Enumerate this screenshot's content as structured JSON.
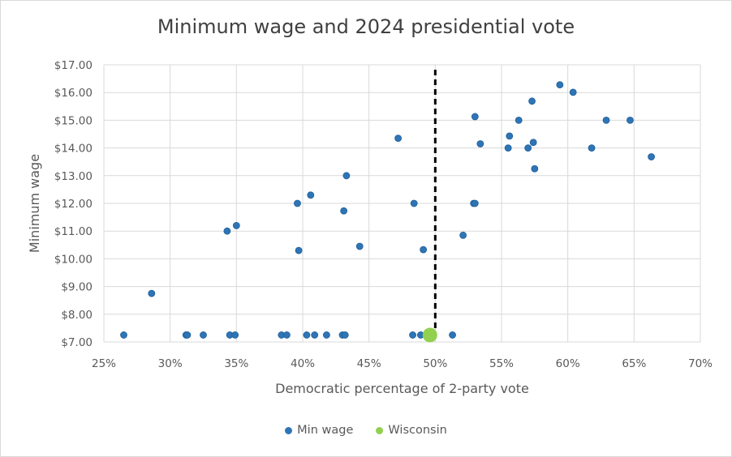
{
  "chart_data": {
    "type": "scatter",
    "title": "Minimum wage and 2024 presidential vote",
    "xlabel": "Democratic percentage of 2-party vote",
    "ylabel": "Minimum wage",
    "xlim": [
      0.25,
      0.7
    ],
    "ylim": [
      7.0,
      17.0
    ],
    "x_ticks": [
      "25%",
      "30%",
      "35%",
      "40%",
      "45%",
      "50%",
      "55%",
      "60%",
      "65%",
      "70%"
    ],
    "y_ticks": [
      "$7.00",
      "$8.00",
      "$9.00",
      "$10.00",
      "$11.00",
      "$12.00",
      "$13.00",
      "$14.00",
      "$15.00",
      "$16.00",
      "$17.00"
    ],
    "grid": true,
    "legend_position": "bottom",
    "reference_line": {
      "x": 0.5,
      "style": "dashed",
      "color": "#000000"
    },
    "series": [
      {
        "name": "Min wage",
        "color": "#2e75b6",
        "points": [
          [
            0.265,
            7.25
          ],
          [
            0.286,
            8.75
          ],
          [
            0.312,
            7.25
          ],
          [
            0.313,
            7.25
          ],
          [
            0.325,
            7.25
          ],
          [
            0.343,
            11.0
          ],
          [
            0.345,
            7.25
          ],
          [
            0.349,
            7.25
          ],
          [
            0.35,
            11.2
          ],
          [
            0.384,
            7.25
          ],
          [
            0.388,
            7.25
          ],
          [
            0.396,
            12.0
          ],
          [
            0.397,
            10.3
          ],
          [
            0.403,
            7.25
          ],
          [
            0.406,
            12.3
          ],
          [
            0.409,
            7.25
          ],
          [
            0.418,
            7.25
          ],
          [
            0.43,
            7.25
          ],
          [
            0.431,
            11.73
          ],
          [
            0.432,
            7.25
          ],
          [
            0.433,
            13.0
          ],
          [
            0.443,
            10.45
          ],
          [
            0.472,
            14.35
          ],
          [
            0.483,
            7.25
          ],
          [
            0.484,
            12.0
          ],
          [
            0.489,
            7.25
          ],
          [
            0.491,
            10.33
          ],
          [
            0.494,
            7.25
          ],
          [
            0.513,
            7.25
          ],
          [
            0.521,
            10.85
          ],
          [
            0.529,
            12.0
          ],
          [
            0.53,
            12.0
          ],
          [
            0.53,
            15.13
          ],
          [
            0.534,
            14.15
          ],
          [
            0.555,
            14.0
          ],
          [
            0.556,
            14.43
          ],
          [
            0.563,
            15.0
          ],
          [
            0.57,
            14.0
          ],
          [
            0.573,
            15.69
          ],
          [
            0.574,
            14.2
          ],
          [
            0.575,
            13.25
          ],
          [
            0.594,
            16.28
          ],
          [
            0.604,
            16.01
          ],
          [
            0.618,
            14.0
          ],
          [
            0.629,
            15.0
          ],
          [
            0.647,
            15.0
          ],
          [
            0.663,
            13.68
          ]
        ]
      },
      {
        "name": "Wisconsin",
        "color": "#92d050",
        "points": [
          [
            0.496,
            7.25
          ]
        ]
      }
    ]
  }
}
